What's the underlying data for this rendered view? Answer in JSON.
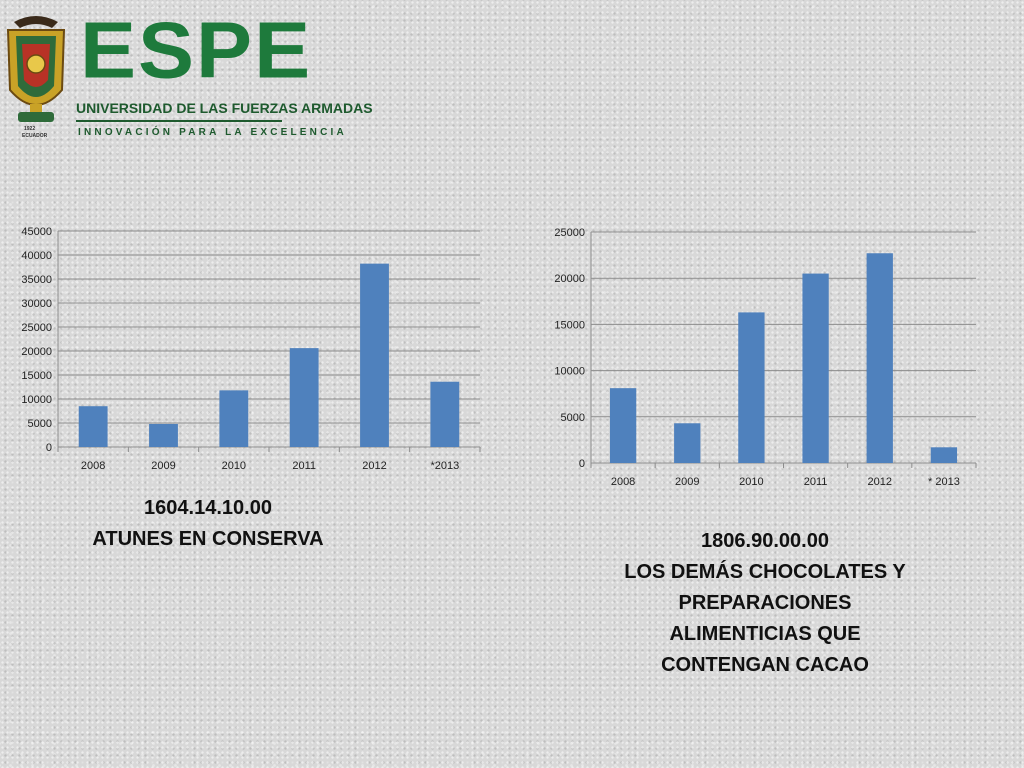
{
  "logo": {
    "name": "ESPE",
    "university": "UNIVERSIDAD DE LAS FUERZAS ARMADAS",
    "motto": "INNOVACIÓN PARA LA EXCELENCIA",
    "emblem_year": "1922",
    "emblem_country": "ECUADOR"
  },
  "colors": {
    "bar": "#4f81bd",
    "grid": "#8c8c8c",
    "logo_green": "#1e7a3c"
  },
  "chart_data": [
    {
      "type": "bar",
      "title": "",
      "xlabel": "",
      "ylabel": "",
      "categories": [
        "2008",
        "2009",
        "2010",
        "2011",
        "2012",
        "*2013"
      ],
      "values": [
        8500,
        4800,
        11800,
        20600,
        38200,
        13600
      ],
      "ylim": [
        0,
        45000
      ],
      "yticks": [
        0,
        5000,
        10000,
        15000,
        20000,
        25000,
        30000,
        35000,
        40000,
        45000
      ],
      "grid": true,
      "legend": "none"
    },
    {
      "type": "bar",
      "title": "",
      "xlabel": "",
      "ylabel": "",
      "categories": [
        "2008",
        "2009",
        "2010",
        "2011",
        "2012",
        "* 2013"
      ],
      "values": [
        8100,
        4300,
        16300,
        20500,
        22700,
        1700
      ],
      "ylim": [
        0,
        25000
      ],
      "yticks": [
        0,
        5000,
        10000,
        15000,
        20000,
        25000
      ],
      "grid": true,
      "legend": "none"
    }
  ],
  "captions": [
    {
      "code": "1604.14.10.00",
      "lines": [
        "ATUNES EN CONSERVA"
      ]
    },
    {
      "code": "1806.90.00.00",
      "lines": [
        "LOS DEMÁS CHOCOLATES Y",
        "PREPARACIONES",
        "ALIMENTICIAS QUE",
        "CONTENGAN CACAO"
      ]
    }
  ]
}
